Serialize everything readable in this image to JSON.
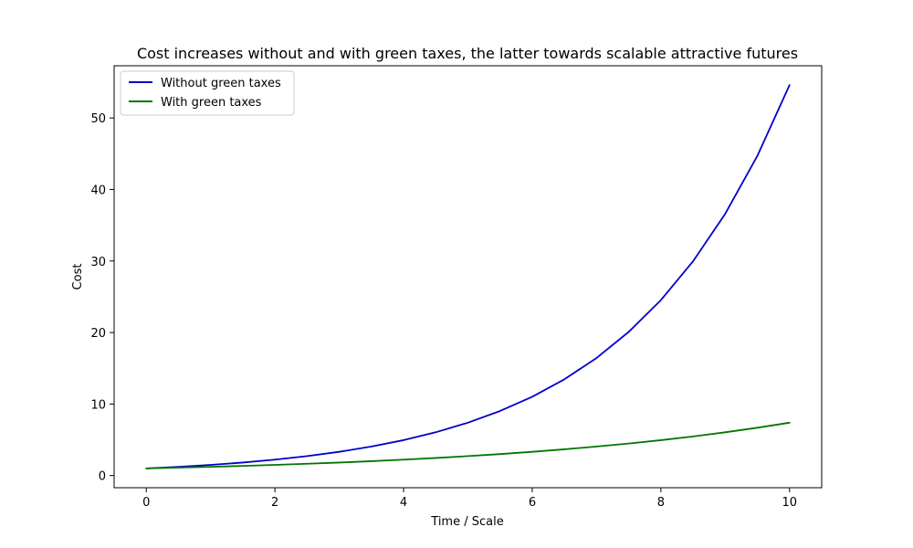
{
  "chart_data": {
    "type": "line",
    "title": "Cost increases without and with green taxes, the latter towards scalable attractive futures",
    "xlabel": "Time / Scale",
    "ylabel": "Cost",
    "xlim": [
      -0.5,
      10.5
    ],
    "ylim": [
      -1.7,
      57.3
    ],
    "xticks": [
      0,
      2,
      4,
      6,
      8,
      10
    ],
    "yticks": [
      0,
      10,
      20,
      30,
      40,
      50
    ],
    "grid": false,
    "legend_position": "top-left",
    "x": [
      0,
      0.5,
      1,
      1.5,
      2,
      2.5,
      3,
      3.5,
      4,
      4.5,
      5,
      5.5,
      6,
      6.5,
      7,
      7.5,
      8,
      8.5,
      9,
      9.5,
      10
    ],
    "series": [
      {
        "name": "Without green taxes",
        "color": "#0000cc",
        "values": [
          1.0,
          1.22,
          1.49,
          1.82,
          2.23,
          2.72,
          3.32,
          4.06,
          4.95,
          6.05,
          7.39,
          9.03,
          11.02,
          13.46,
          16.44,
          20.09,
          24.53,
          29.96,
          36.6,
          44.7,
          54.6
        ]
      },
      {
        "name": "With green taxes",
        "color": "#007700",
        "values": [
          1.0,
          1.11,
          1.22,
          1.35,
          1.49,
          1.65,
          1.82,
          2.01,
          2.23,
          2.46,
          2.72,
          3.0,
          3.32,
          3.67,
          4.06,
          4.48,
          4.95,
          5.47,
          6.05,
          6.69,
          7.39
        ]
      }
    ]
  }
}
